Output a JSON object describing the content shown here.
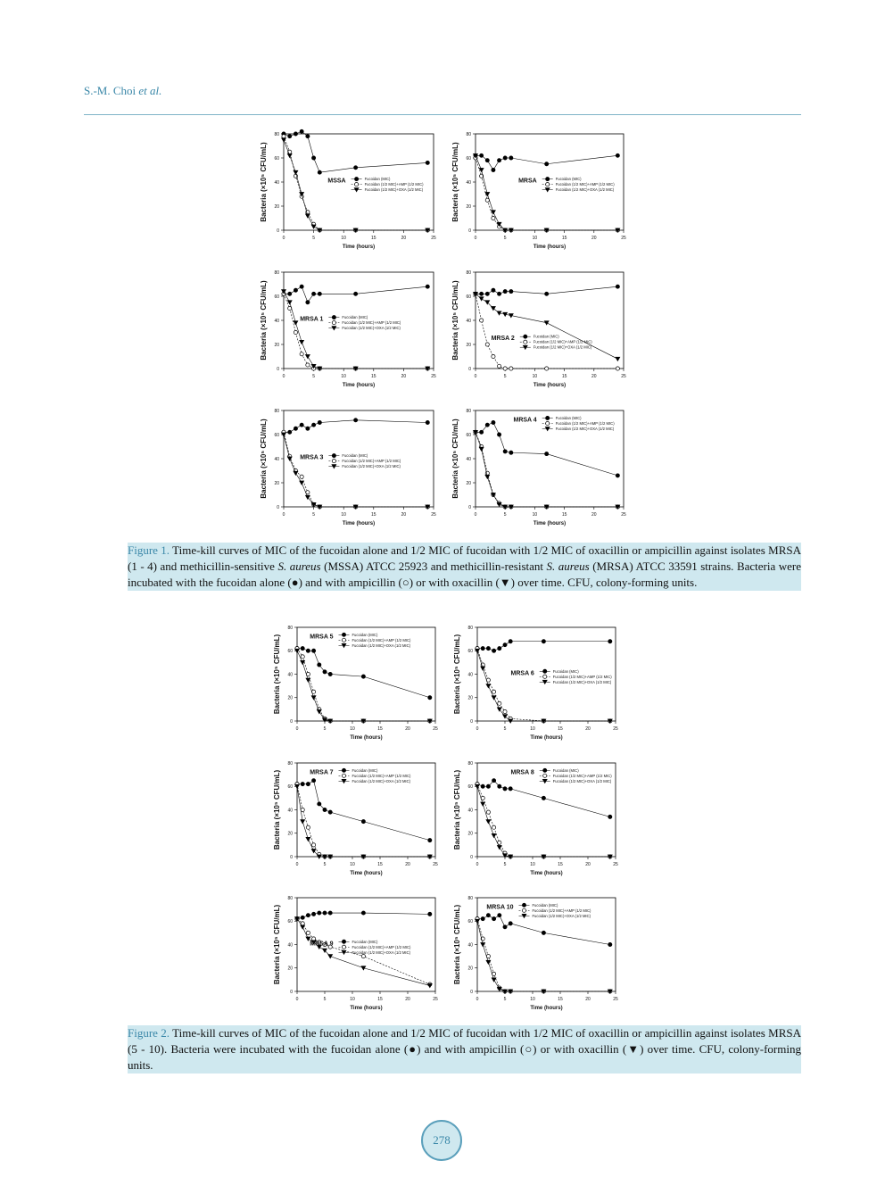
{
  "header": {
    "authors": "S.-M. Choi",
    "etal": "et al."
  },
  "chart_data": [
    {
      "type": "line",
      "title": "MSSA",
      "legend": "middle-right",
      "x": [
        0,
        1,
        2,
        3,
        4,
        5,
        6,
        12,
        24
      ],
      "xlim": [
        0,
        25
      ],
      "xticks": [
        0,
        5,
        10,
        15,
        20,
        25
      ],
      "ylim": [
        0,
        80
      ],
      "yticks": [
        0,
        20,
        40,
        60,
        80
      ],
      "xlabel": "Time (hours)",
      "ylabel": "Bacteria (×10⁵ CFU/mL)",
      "series": [
        {
          "name": "Fucoidan (MIC)",
          "marker": "filled-circle",
          "values": [
            80,
            78,
            80,
            82,
            78,
            60,
            48,
            52,
            56
          ]
        },
        {
          "name": "Fucoidan (1/2 MIC)+AMP (1/2 MIC)",
          "marker": "open-circle",
          "values": [
            78,
            65,
            45,
            28,
            15,
            5,
            0,
            0,
            0
          ]
        },
        {
          "name": "Fucoidan (1/2 MIC)+OXA (1/2 MIC)",
          "marker": "triangle-down",
          "values": [
            75,
            62,
            48,
            30,
            12,
            3,
            0,
            0,
            0
          ]
        }
      ]
    },
    {
      "type": "line",
      "title": "MRSA",
      "legend": "middle-right",
      "x": [
        0,
        1,
        2,
        3,
        4,
        5,
        6,
        12,
        24
      ],
      "xlim": [
        0,
        25
      ],
      "xticks": [
        0,
        5,
        10,
        15,
        20,
        25
      ],
      "ylim": [
        0,
        80
      ],
      "yticks": [
        0,
        20,
        40,
        60,
        80
      ],
      "xlabel": "Time (hours)",
      "ylabel": "Bacteria (×10⁵ CFU/mL)",
      "series": [
        {
          "name": "Fucoidan (MIC)",
          "marker": "filled-circle",
          "values": [
            62,
            62,
            58,
            50,
            58,
            60,
            60,
            55,
            62
          ]
        },
        {
          "name": "Fucoidan (1/2 MIC)+AMP (1/2 MIC)",
          "marker": "open-circle",
          "values": [
            60,
            45,
            25,
            10,
            3,
            0,
            0,
            0,
            0
          ]
        },
        {
          "name": "Fucoidan (1/2 MIC)+OXA (1/2 MIC)",
          "marker": "triangle-down",
          "values": [
            62,
            50,
            30,
            15,
            5,
            0,
            0,
            0,
            0
          ]
        }
      ]
    },
    {
      "type": "line",
      "title": "MRSA 1",
      "legend": "middle-center",
      "x": [
        0,
        1,
        2,
        3,
        4,
        5,
        6,
        12,
        24
      ],
      "xlim": [
        0,
        25
      ],
      "xticks": [
        0,
        5,
        10,
        15,
        20,
        25
      ],
      "ylim": [
        0,
        80
      ],
      "yticks": [
        0,
        20,
        40,
        60,
        80
      ],
      "xlabel": "Time (hours)",
      "ylabel": "Bacteria (×10⁵ CFU/mL)",
      "series": [
        {
          "name": "Fucoidan (MIC)",
          "marker": "filled-circle",
          "values": [
            62,
            62,
            65,
            68,
            55,
            62,
            62,
            62,
            68
          ]
        },
        {
          "name": "Fucoidan (1/2 MIC)+AMP (1/2 MIC)",
          "marker": "open-circle",
          "values": [
            62,
            50,
            30,
            12,
            3,
            0,
            0,
            0,
            0
          ]
        },
        {
          "name": "Fucoidan (1/2 MIC)+OXA (1/2 MIC)",
          "marker": "triangle-down",
          "values": [
            64,
            55,
            38,
            22,
            10,
            2,
            0,
            0,
            0
          ]
        }
      ]
    },
    {
      "type": "line",
      "title": "MRSA 2",
      "legend": "lower-center",
      "x": [
        0,
        1,
        2,
        3,
        4,
        5,
        6,
        12,
        24
      ],
      "xlim": [
        0,
        25
      ],
      "xticks": [
        0,
        5,
        10,
        15,
        20,
        25
      ],
      "ylim": [
        0,
        80
      ],
      "yticks": [
        0,
        20,
        40,
        60,
        80
      ],
      "xlabel": "Time (hours)",
      "ylabel": "Bacteria (×10⁵ CFU/mL)",
      "series": [
        {
          "name": "Fucoidan (MIC)",
          "marker": "filled-circle",
          "values": [
            62,
            62,
            62,
            65,
            62,
            64,
            64,
            62,
            68
          ]
        },
        {
          "name": "Fucoidan (1/2 MIC)+AMP (1/2 MIC)",
          "marker": "open-circle",
          "values": [
            62,
            40,
            20,
            10,
            2,
            0,
            0,
            0,
            0
          ]
        },
        {
          "name": "Fucoidan (1/2 MIC)+OXA (1/2 MIC)",
          "marker": "triangle-down",
          "values": [
            62,
            58,
            55,
            50,
            46,
            45,
            44,
            38,
            8
          ]
        }
      ]
    },
    {
      "type": "line",
      "title": "MRSA 3",
      "legend": "middle-center",
      "x": [
        0,
        1,
        2,
        3,
        4,
        5,
        6,
        12,
        24
      ],
      "xlim": [
        0,
        25
      ],
      "xticks": [
        0,
        5,
        10,
        15,
        20,
        25
      ],
      "ylim": [
        0,
        80
      ],
      "yticks": [
        0,
        20,
        40,
        60,
        80
      ],
      "xlabel": "Time (hours)",
      "ylabel": "Bacteria (×10⁵ CFU/mL)",
      "series": [
        {
          "name": "Fucoidan (MIC)",
          "marker": "filled-circle",
          "values": [
            62,
            62,
            65,
            68,
            65,
            68,
            70,
            72,
            70
          ]
        },
        {
          "name": "Fucoidan (1/2 MIC)+AMP (1/2 MIC)",
          "marker": "open-circle",
          "values": [
            62,
            42,
            30,
            25,
            12,
            2,
            0,
            0,
            0
          ]
        },
        {
          "name": "Fucoidan (1/2 MIC)+OXA (1/2 MIC)",
          "marker": "triangle-down",
          "values": [
            60,
            40,
            28,
            20,
            8,
            2,
            0,
            0,
            0
          ]
        }
      ]
    },
    {
      "type": "line",
      "title": "MRSA 4",
      "legend": "upper-right",
      "x": [
        0,
        1,
        2,
        3,
        4,
        5,
        6,
        12,
        24
      ],
      "xlim": [
        0,
        25
      ],
      "xticks": [
        0,
        5,
        10,
        15,
        20,
        25
      ],
      "ylim": [
        0,
        80
      ],
      "yticks": [
        0,
        20,
        40,
        60,
        80
      ],
      "xlabel": "Time (hours)",
      "ylabel": "Bacteria (×10⁵ CFU/mL)",
      "series": [
        {
          "name": "Fucoidan (MIC)",
          "marker": "filled-circle",
          "values": [
            62,
            62,
            68,
            70,
            60,
            46,
            45,
            44,
            26
          ]
        },
        {
          "name": "Fucoidan (1/2 MIC)+AMP (1/2 MIC)",
          "marker": "open-circle",
          "values": [
            62,
            50,
            28,
            10,
            3,
            0,
            0,
            0,
            0
          ]
        },
        {
          "name": "Fucoidan (1/2 MIC)+OXA (1/2 MIC)",
          "marker": "triangle-down",
          "values": [
            62,
            48,
            25,
            10,
            2,
            0,
            0,
            0,
            0
          ]
        }
      ]
    },
    {
      "type": "line",
      "title": "MRSA 5",
      "legend": "upper-center",
      "x": [
        0,
        1,
        2,
        3,
        4,
        5,
        6,
        12,
        24
      ],
      "xlim": [
        0,
        25
      ],
      "xticks": [
        0,
        5,
        10,
        15,
        20,
        25
      ],
      "ylim": [
        0,
        80
      ],
      "yticks": [
        0,
        20,
        40,
        60,
        80
      ],
      "xlabel": "Time (hours)",
      "ylabel": "Bacteria (×10⁵ CFU/mL)",
      "series": [
        {
          "name": "Fucoidan (MIC)",
          "marker": "filled-circle",
          "values": [
            62,
            62,
            60,
            60,
            48,
            42,
            40,
            38,
            20
          ]
        },
        {
          "name": "Fucoidan (1/2 MIC)+AMP (1/2 MIC)",
          "marker": "open-circle",
          "values": [
            62,
            55,
            40,
            25,
            10,
            2,
            0,
            0,
            0
          ]
        },
        {
          "name": "Fucoidan (1/2 MIC)+OXA (1/2 MIC)",
          "marker": "triangle-down",
          "values": [
            60,
            50,
            35,
            20,
            8,
            1,
            0,
            0,
            0
          ]
        }
      ]
    },
    {
      "type": "line",
      "title": "MRSA 6",
      "legend": "middle-right",
      "x": [
        0,
        1,
        2,
        3,
        4,
        5,
        6,
        12,
        24
      ],
      "xlim": [
        0,
        25
      ],
      "xticks": [
        0,
        5,
        10,
        15,
        20,
        25
      ],
      "ylim": [
        0,
        80
      ],
      "yticks": [
        0,
        20,
        40,
        60,
        80
      ],
      "xlabel": "Time (hours)",
      "ylabel": "Bacteria (×10⁵ CFU/mL)",
      "series": [
        {
          "name": "Fucoidan (MIC)",
          "marker": "filled-circle",
          "values": [
            62,
            62,
            62,
            60,
            62,
            65,
            68,
            68,
            68
          ]
        },
        {
          "name": "Fucoidan (1/2 MIC)+AMP (1/2 MIC)",
          "marker": "open-circle",
          "values": [
            62,
            48,
            35,
            25,
            15,
            8,
            2,
            0,
            0
          ]
        },
        {
          "name": "Fucoidan (1/2 MIC)+OXA (1/2 MIC)",
          "marker": "triangle-down",
          "values": [
            60,
            45,
            30,
            20,
            10,
            4,
            0,
            0,
            0
          ]
        }
      ]
    },
    {
      "type": "line",
      "title": "MRSA 7",
      "legend": "upper-center",
      "x": [
        0,
        1,
        2,
        3,
        4,
        5,
        6,
        12,
        24
      ],
      "xlim": [
        0,
        25
      ],
      "xticks": [
        0,
        5,
        10,
        15,
        20,
        25
      ],
      "ylim": [
        0,
        80
      ],
      "yticks": [
        0,
        20,
        40,
        60,
        80
      ],
      "xlabel": "Time (hours)",
      "ylabel": "Bacteria (×10⁵ CFU/mL)",
      "series": [
        {
          "name": "Fucoidan (MIC)",
          "marker": "filled-circle",
          "values": [
            62,
            62,
            62,
            65,
            45,
            40,
            38,
            30,
            14
          ]
        },
        {
          "name": "Fucoidan (1/2 MIC)+AMP (1/2 MIC)",
          "marker": "open-circle",
          "values": [
            62,
            40,
            25,
            10,
            2,
            0,
            0,
            0,
            0
          ]
        },
        {
          "name": "Fucoidan (1/2 MIC)+OXA (1/2 MIC)",
          "marker": "triangle-down",
          "values": [
            60,
            30,
            15,
            5,
            0,
            0,
            0,
            0,
            0
          ]
        }
      ]
    },
    {
      "type": "line",
      "title": "MRSA 8",
      "legend": "upper-right",
      "x": [
        0,
        1,
        2,
        3,
        4,
        5,
        6,
        12,
        24
      ],
      "xlim": [
        0,
        25
      ],
      "xticks": [
        0,
        5,
        10,
        15,
        20,
        25
      ],
      "ylim": [
        0,
        80
      ],
      "yticks": [
        0,
        20,
        40,
        60,
        80
      ],
      "xlabel": "Time (hours)",
      "ylabel": "Bacteria (×10⁵ CFU/mL)",
      "series": [
        {
          "name": "Fucoidan (MIC)",
          "marker": "filled-circle",
          "values": [
            62,
            60,
            60,
            65,
            60,
            58,
            58,
            50,
            34
          ]
        },
        {
          "name": "Fucoidan (1/2 MIC)+AMP (1/2 MIC)",
          "marker": "open-circle",
          "values": [
            62,
            50,
            38,
            25,
            12,
            3,
            0,
            0,
            0
          ]
        },
        {
          "name": "Fucoidan (1/2 MIC)+OXA (1/2 MIC)",
          "marker": "triangle-down",
          "values": [
            60,
            45,
            30,
            18,
            8,
            1,
            0,
            0,
            0
          ]
        }
      ]
    },
    {
      "type": "line",
      "title": "MRSA 9",
      "legend": "middle-center",
      "x": [
        0,
        1,
        2,
        3,
        4,
        5,
        6,
        12,
        24
      ],
      "xlim": [
        0,
        25
      ],
      "xticks": [
        0,
        5,
        10,
        15,
        20,
        25
      ],
      "ylim": [
        0,
        80
      ],
      "yticks": [
        0,
        20,
        40,
        60,
        80
      ],
      "xlabel": "Time (hours)",
      "ylabel": "Bacteria (×10⁵ CFU/mL)",
      "series": [
        {
          "name": "Fucoidan (MIC)",
          "marker": "filled-circle",
          "values": [
            62,
            63,
            65,
            66,
            67,
            67,
            67,
            67,
            66
          ]
        },
        {
          "name": "Fucoidan (1/2 MIC)+AMP (1/2 MIC)",
          "marker": "open-circle",
          "values": [
            62,
            58,
            50,
            45,
            42,
            40,
            38,
            30,
            6
          ]
        },
        {
          "name": "Fucoidan (1/2 MIC)+OXA (1/2 MIC)",
          "marker": "triangle-down",
          "values": [
            62,
            55,
            45,
            42,
            38,
            35,
            30,
            20,
            5
          ]
        }
      ]
    },
    {
      "type": "line",
      "title": "MRSA 10",
      "legend": "upper-center",
      "x": [
        0,
        1,
        2,
        3,
        4,
        5,
        6,
        12,
        24
      ],
      "xlim": [
        0,
        25
      ],
      "xticks": [
        0,
        5,
        10,
        15,
        20,
        25
      ],
      "ylim": [
        0,
        80
      ],
      "yticks": [
        0,
        20,
        40,
        60,
        80
      ],
      "xlabel": "Time (hours)",
      "ylabel": "Bacteria (×10⁵ CFU/mL)",
      "series": [
        {
          "name": "Fucoidan (MIC)",
          "marker": "filled-circle",
          "values": [
            62,
            62,
            65,
            62,
            65,
            55,
            58,
            50,
            40
          ]
        },
        {
          "name": "Fucoidan (1/2 MIC)+AMP (1/2 MIC)",
          "marker": "open-circle",
          "values": [
            62,
            45,
            30,
            15,
            3,
            0,
            0,
            0,
            0
          ]
        },
        {
          "name": "Fucoidan (1/2 MIC)+OXA (1/2 MIC)",
          "marker": "triangle-down",
          "values": [
            60,
            40,
            25,
            10,
            2,
            0,
            0,
            0,
            0
          ]
        }
      ]
    }
  ],
  "captions": [
    {
      "label": "Figure 1.",
      "parts": [
        {
          "text": " Time-kill curves of MIC of the fucoidan alone and 1/2 MIC of fucoidan with 1/2 MIC of oxacillin or ampicillin against isolates MRSA (1 - 4) and methicillin-sensitive "
        },
        {
          "text": "S. aureus",
          "style": "italic"
        },
        {
          "text": " (MSSA) ATCC 25923 and methicillin-resistant "
        },
        {
          "text": "S. aureus",
          "style": "italic"
        },
        {
          "text": " (MRSA) ATCC 33591 strains. Bacteria were incubated with the fucoidan alone (●) and with ampicillin (○) or with oxacillin (▼) over time. CFU, colony-forming units."
        }
      ]
    },
    {
      "label": "Figure 2.",
      "parts": [
        {
          "text": " Time-kill curves of MIC of the fucoidan alone and 1/2 MIC of fucoidan with 1/2 MIC of oxacillin or ampicillin against isolates MRSA (5 - 10). Bacteria were incubated with the fucoidan alone (●) and with ampicillin (○) or with oxacillin (▼) over time. CFU, colony-forming units."
        }
      ]
    }
  ],
  "page_number": "278"
}
